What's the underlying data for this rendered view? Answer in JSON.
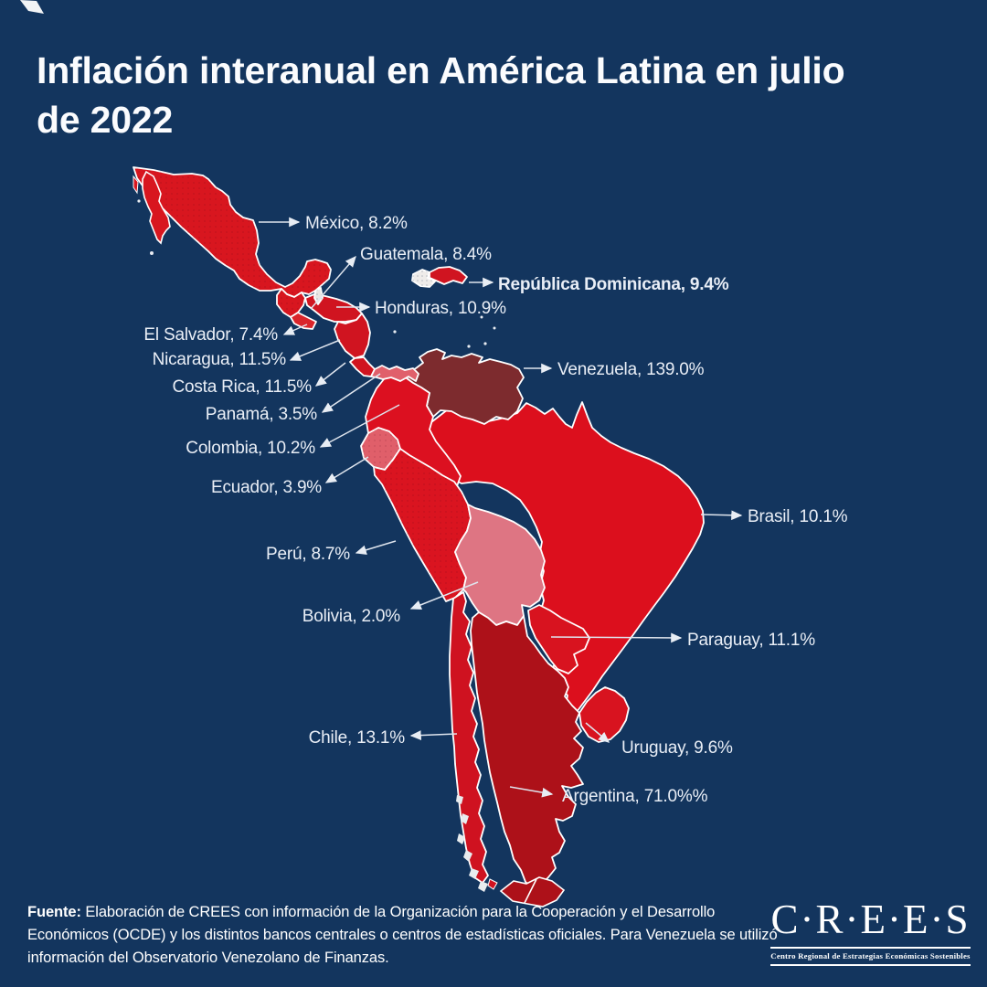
{
  "header": {
    "line1": "Inflación interanual en América Latina en julio",
    "line2": "de 2022"
  },
  "colors": {
    "background": "#13355e",
    "border": "#ffffff",
    "label_text": "#e9eef6",
    "leader_line": "#dfe5ee"
  },
  "map": {
    "countries": [
      {
        "id": "brasil",
        "name": "Brasil",
        "value": "10.1%",
        "label": "Brasil, 10.1%",
        "fill": "#dc0f1d",
        "bold": false
      },
      {
        "id": "venezuela",
        "name": "Venezuela",
        "value": "139.0%",
        "label": "Venezuela, 139.0%",
        "fill": "#7d2b2e",
        "bold": false
      },
      {
        "id": "colombia",
        "name": "Colombia",
        "value": "10.2%",
        "label": "Colombia, 10.2%",
        "fill": "#dc1020",
        "bold": false
      },
      {
        "id": "ecuador",
        "name": "Ecuador",
        "value": "3.9%",
        "label": "Ecuador, 3.9%",
        "fill": "#e05f6a",
        "bold": false
      },
      {
        "id": "peru",
        "name": "Perú",
        "value": "8.7%",
        "label": "Perú, 8.7%",
        "fill": "#da1420",
        "bold": false
      },
      {
        "id": "bolivia",
        "name": "Bolivia",
        "value": "2.0%",
        "label": "Bolivia, 2.0%",
        "fill": "#de7583",
        "bold": false
      },
      {
        "id": "argentina",
        "name": "Argentina",
        "value": "71.0%",
        "label": "Argentina, 71.0%%",
        "fill": "#ad1119",
        "bold": false
      },
      {
        "id": "paraguay",
        "name": "Paraguay",
        "value": "11.1%",
        "label": "Paraguay, 11.1%",
        "fill": "#d8131f",
        "bold": false
      },
      {
        "id": "uruguay",
        "name": "Uruguay",
        "value": "9.6%",
        "label": "Uruguay, 9.6%",
        "fill": "#d8131f",
        "bold": false
      },
      {
        "id": "chile",
        "name": "Chile",
        "value": "13.1%",
        "label": "Chile, 13.1%",
        "fill": "#cf1220",
        "bold": false
      },
      {
        "id": "mexico",
        "name": "México",
        "value": "8.2%",
        "label": "México, 8.2%",
        "fill": "#d8161f",
        "bold": false
      },
      {
        "id": "guatemala",
        "name": "Guatemala",
        "value": "8.4%",
        "label": "Guatemala, 8.4%",
        "fill": "#d8161f",
        "bold": false
      },
      {
        "id": "honduras",
        "name": "Honduras",
        "value": "10.9%",
        "label": "Honduras, 10.9%",
        "fill": "#d01420",
        "bold": false
      },
      {
        "id": "el_salvador",
        "name": "El Salvador",
        "value": "7.4%",
        "label": "El Salvador, 7.4%",
        "fill": "#da252b",
        "bold": false
      },
      {
        "id": "nicaragua",
        "name": "Nicaragua",
        "value": "11.5%",
        "label": "Nicaragua, 11.5%",
        "fill": "#d01420",
        "bold": false
      },
      {
        "id": "costa_rica",
        "name": "Costa Rica",
        "value": "11.5%",
        "label": "Costa Rica, 11.5%",
        "fill": "#d01420",
        "bold": false
      },
      {
        "id": "panama",
        "name": "Panamá",
        "value": "3.5%",
        "label": "Panamá, 3.5%",
        "fill": "#e0606b",
        "bold": false
      },
      {
        "id": "dominicana",
        "name": "República Dominicana",
        "value": "9.4%",
        "label": "República Dominicana, 9.4%",
        "fill": "#d01420",
        "bold": true
      },
      {
        "id": "haiti",
        "name": "Haití",
        "value": "",
        "label": "",
        "fill": "#efecea",
        "bold": false
      },
      {
        "id": "belize",
        "name": "Belice",
        "value": "",
        "label": "",
        "fill": "#e9e6e2",
        "bold": false
      }
    ]
  },
  "footer": {
    "label": "Fuente:",
    "text": " Elaboración de CREES con información de la Organización para la Cooperación y el Desarrollo Económicos (OCDE) y los distintos bancos centrales o centros de estadísticas oficiales. Para Venezuela se utilizó información del Observatorio Venezolano de Finanzas."
  },
  "logo": {
    "wordmark": "C·R·E·E·S",
    "tagline": "Centro Regional de Estrategias Económicas Sostenibles"
  }
}
